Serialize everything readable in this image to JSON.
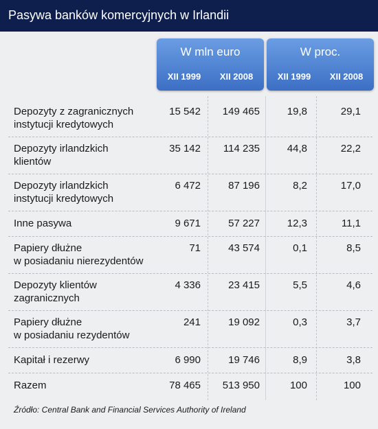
{
  "header": {
    "title": "Pasywa banków komercyjnych w Irlandii"
  },
  "table": {
    "groups": [
      "W mln euro",
      "W proc."
    ],
    "columns": [
      "XII 1999",
      "XII 2008",
      "XII 1999",
      "XII 2008"
    ],
    "rows": [
      {
        "label": [
          "Depozyty  z zagranicznych",
          "instytucji kredytowych"
        ],
        "values": [
          "15 542",
          "149 465",
          "19,8",
          "29,1"
        ]
      },
      {
        "label": [
          "Depozyty irlandzkich",
          "klientów"
        ],
        "values": [
          "35 142",
          "114 235",
          "44,8",
          "22,2"
        ]
      },
      {
        "label": [
          "Depozyty irlandzkich",
          "instytucji kredytowych"
        ],
        "values": [
          "6 472",
          "87 196",
          "8,2",
          "17,0"
        ]
      },
      {
        "label": [
          "Inne pasywa"
        ],
        "values": [
          "9 671",
          "57 227",
          "12,3",
          "11,1"
        ]
      },
      {
        "label": [
          "Papiery dłużne",
          "w posiadaniu nierezydentów"
        ],
        "values": [
          "71",
          "43 574",
          "0,1",
          "8,5"
        ]
      },
      {
        "label": [
          "Depozyty klientów",
          " zagranicznych"
        ],
        "values": [
          "4 336",
          "23 415",
          "5,5",
          "4,6"
        ]
      },
      {
        "label": [
          "Papiery dłużne",
          "w posiadaniu rezydentów"
        ],
        "values": [
          "241",
          "19 092",
          "0,3",
          "3,7"
        ]
      },
      {
        "label": [
          "Kapitał i rezerwy"
        ],
        "values": [
          "6 990",
          "19 746",
          "8,9",
          "3,8"
        ]
      },
      {
        "label": [
          "Razem"
        ],
        "values": [
          "78 465",
          "513 950",
          "100",
          "100"
        ]
      }
    ]
  },
  "source": "Źródło: Central Bank and Financial Services Authority of Ireland"
}
